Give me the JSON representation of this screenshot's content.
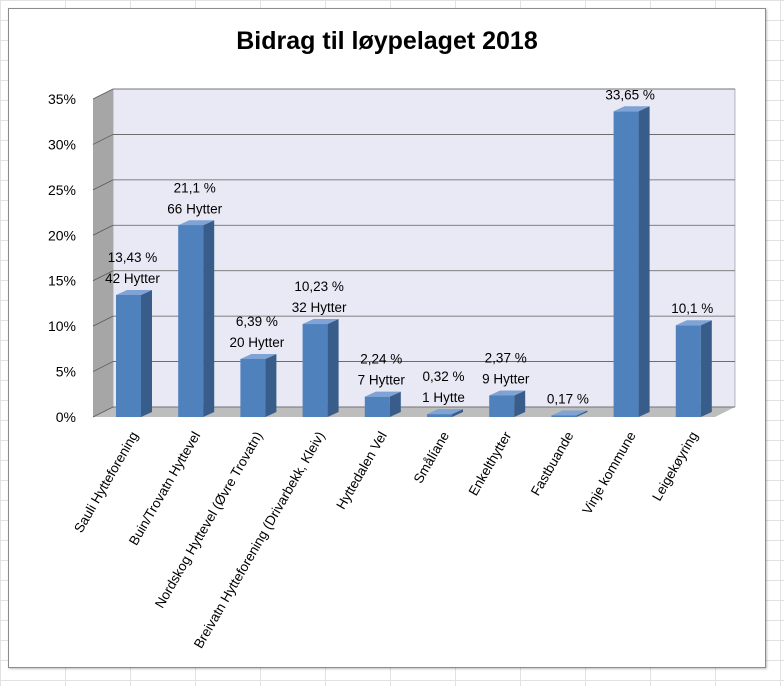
{
  "chart_data": {
    "type": "bar",
    "title": "Bidrag til løypelaget 2018",
    "xlabel": "",
    "ylabel": "",
    "ylim": [
      0,
      35
    ],
    "y_ticks": [
      "0%",
      "5%",
      "10%",
      "15%",
      "20%",
      "25%",
      "30%",
      "35%"
    ],
    "grid": true,
    "three_d": true,
    "legend": "none",
    "categories": [
      "Sauli Hytteforening",
      "Buin/Trovatn Hyttevel",
      "Nordskog Hyttevel (Øvre Trovatn)",
      "Breivatn Hytteforening (Drivarbekk, Kleiv)",
      "Hyttedalen Vel",
      "Smålíane",
      "Enkelthytter",
      "Fastbuande",
      "Vinje kommune",
      "Leigekøyring"
    ],
    "values": [
      13.43,
      21.1,
      6.39,
      10.23,
      2.24,
      0.32,
      2.37,
      0.17,
      33.65,
      10.1
    ],
    "data_labels": [
      [
        "13,43 %",
        "42 Hytter"
      ],
      [
        "21,1 %",
        "66 Hytter"
      ],
      [
        "6,39 %",
        "20 Hytter"
      ],
      [
        "10,23 %",
        "32 Hytter"
      ],
      [
        "2,24 %",
        "7 Hytter"
      ],
      [
        "0,32 %",
        "1 Hytte"
      ],
      [
        "2,37 %",
        "9 Hytter"
      ],
      [
        "0,17 %"
      ],
      [
        "33,65 %"
      ],
      [
        "10,1 %"
      ]
    ],
    "colors": {
      "bar_front": "#4f81bd",
      "bar_side": "#385d8a",
      "bar_top": "#7ea3d4",
      "wall": "#e8e9f5",
      "side_wall": "#a6a6a6",
      "floor": "#bdbdbd",
      "grid": "#5b5b5b"
    }
  }
}
